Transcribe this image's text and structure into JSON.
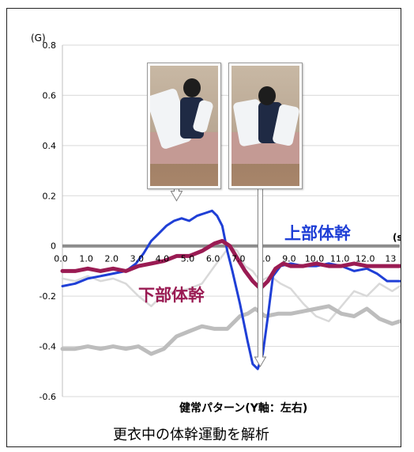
{
  "chart_data": {
    "type": "line",
    "y_unit": "(G)",
    "x_unit": "(s",
    "y_ticks": [
      "0.8",
      "0.6",
      "0.4",
      "0.2",
      "0",
      "-0.2",
      "-0.4",
      "-0.6"
    ],
    "ylim": [
      -0.6,
      0.8
    ],
    "x_ticks": [
      "0.0",
      "1.0",
      "2.0",
      "3.0",
      "4.0",
      "5.0",
      "6.0",
      "7.0",
      "8.0",
      "9.0",
      "10.0",
      "11.0",
      "12.0",
      "13"
    ],
    "xlim": [
      0,
      13.3
    ],
    "grid": "horizontal",
    "xlabel": "健常パターン(Y軸：左右)",
    "caption": "更衣中の体幹運動を解析",
    "label_upper": "上部体幹",
    "label_lower": "下部体幹",
    "series": [
      {
        "name": "上部体幹",
        "color": "#1f3fd6",
        "x": [
          0,
          0.5,
          1.0,
          1.5,
          2.0,
          2.5,
          2.9,
          3.2,
          3.5,
          3.8,
          4.1,
          4.4,
          4.7,
          5.0,
          5.3,
          5.6,
          5.9,
          6.1,
          6.3,
          6.5,
          6.7,
          7.0,
          7.3,
          7.5,
          7.7,
          7.9,
          8.1,
          8.3,
          8.6,
          9.0,
          9.5,
          10.0,
          10.5,
          11.0,
          11.5,
          12.0,
          12.4,
          12.8,
          13.3
        ],
        "y": [
          -0.16,
          -0.15,
          -0.13,
          -0.12,
          -0.11,
          -0.1,
          -0.07,
          -0.03,
          0.02,
          0.05,
          0.08,
          0.1,
          0.11,
          0.1,
          0.12,
          0.13,
          0.14,
          0.12,
          0.08,
          -0.02,
          -0.1,
          -0.23,
          -0.38,
          -0.47,
          -0.49,
          -0.43,
          -0.28,
          -0.12,
          -0.08,
          -0.07,
          -0.08,
          -0.08,
          -0.07,
          -0.08,
          -0.1,
          -0.09,
          -0.11,
          -0.14,
          -0.14
        ]
      },
      {
        "name": "下部体幹",
        "color": "#9a1b53",
        "x": [
          0,
          0.5,
          1.0,
          1.5,
          2.0,
          2.5,
          3.0,
          3.5,
          4.0,
          4.5,
          5.0,
          5.5,
          6.0,
          6.3,
          6.6,
          6.9,
          7.2,
          7.5,
          7.8,
          8.1,
          8.4,
          8.7,
          9.0,
          9.5,
          10.0,
          10.5,
          11.0,
          11.5,
          12.0,
          12.5,
          13.0,
          13.3
        ],
        "y": [
          -0.1,
          -0.1,
          -0.09,
          -0.1,
          -0.09,
          -0.1,
          -0.08,
          -0.07,
          -0.06,
          -0.04,
          -0.04,
          -0.02,
          0.01,
          0.02,
          0.0,
          -0.05,
          -0.1,
          -0.14,
          -0.17,
          -0.14,
          -0.09,
          -0.07,
          -0.08,
          -0.08,
          -0.07,
          -0.08,
          -0.08,
          -0.07,
          -0.08,
          -0.08,
          -0.08,
          -0.08
        ]
      },
      {
        "name": "",
        "color": "#bdbdbd",
        "x": [
          0,
          0.5,
          1.0,
          1.5,
          2.0,
          2.5,
          3.0,
          3.5,
          4.0,
          4.5,
          5.0,
          5.5,
          6.0,
          6.5,
          7.0,
          7.3,
          7.6,
          8.0,
          8.5,
          9.0,
          9.5,
          10.0,
          10.5,
          11.0,
          11.5,
          12.0,
          12.5,
          13.0,
          13.3
        ],
        "y": [
          -0.41,
          -0.41,
          -0.4,
          -0.41,
          -0.4,
          -0.41,
          -0.4,
          -0.43,
          -0.41,
          -0.36,
          -0.34,
          -0.32,
          -0.33,
          -0.33,
          -0.28,
          -0.27,
          -0.25,
          -0.28,
          -0.27,
          -0.27,
          -0.26,
          -0.25,
          -0.24,
          -0.27,
          -0.28,
          -0.25,
          -0.29,
          -0.31,
          -0.3
        ]
      },
      {
        "name": "",
        "color": "#d9d9d9",
        "x": [
          0,
          0.5,
          1.0,
          1.5,
          2.0,
          2.5,
          3.0,
          3.5,
          4.0,
          4.5,
          5.0,
          5.5,
          6.0,
          6.3,
          6.6,
          6.9,
          7.2,
          7.5,
          7.8,
          8.2,
          8.6,
          9.0,
          9.5,
          10.0,
          10.5,
          11.0,
          11.5,
          12.0,
          12.5,
          13.0,
          13.3
        ],
        "y": [
          -0.13,
          -0.14,
          -0.12,
          -0.14,
          -0.13,
          -0.15,
          -0.2,
          -0.24,
          -0.19,
          -0.18,
          -0.17,
          -0.15,
          -0.08,
          -0.04,
          0.0,
          -0.02,
          -0.08,
          -0.1,
          -0.14,
          -0.12,
          -0.15,
          -0.17,
          -0.23,
          -0.28,
          -0.3,
          -0.24,
          -0.18,
          -0.2,
          -0.15,
          -0.18,
          -0.16
        ]
      }
    ],
    "callouts": [
      {
        "from_photo": 0,
        "x": 4.5,
        "y": 0.18
      },
      {
        "from_photo": 1,
        "x": 7.8,
        "y": -0.48
      }
    ]
  },
  "photos": [
    {
      "name": "photo-upper-trunk-moment"
    },
    {
      "name": "photo-lower-trunk-moment"
    }
  ]
}
